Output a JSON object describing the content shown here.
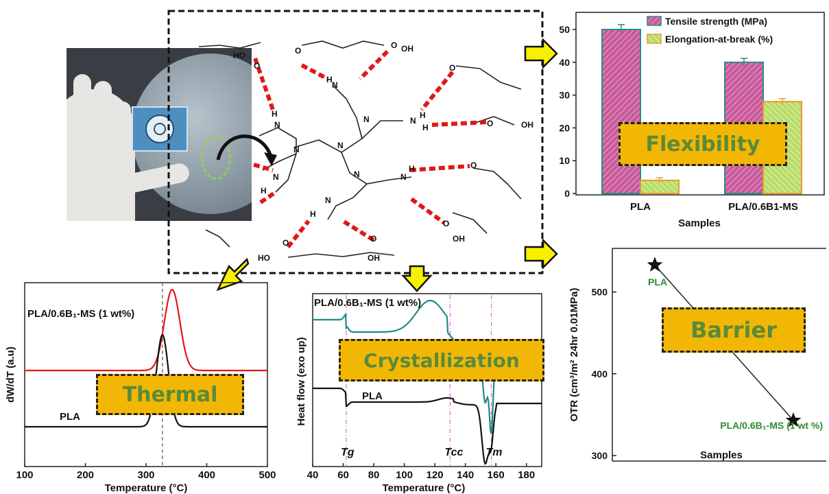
{
  "badges": {
    "flexibility": "Flexibility",
    "barrier": "Barrier",
    "thermal": "Thermal",
    "crystallization": "Crystallization"
  },
  "molecule": {
    "atoms": {
      "N": "N",
      "H": "H",
      "O": "O",
      "OH": "OH",
      "HO": "HO"
    }
  },
  "chart_data": [
    {
      "type": "bar",
      "categories": [
        "PLA",
        "PLA/0.6B1-MS"
      ],
      "series": [
        {
          "name": "Tensile strength (MPa)",
          "values": [
            50,
            40
          ],
          "errors": [
            1.5,
            1.2
          ],
          "color": "#c85a9a"
        },
        {
          "name": "Elongation-at-break (%)",
          "values": [
            4,
            28
          ],
          "errors": [
            0.8,
            0.9
          ],
          "color": "#b9dc6a"
        }
      ],
      "xlabel": "Samples",
      "ylabel": "",
      "ylim": [
        0,
        50
      ],
      "yticks": [
        "0",
        "10",
        "20",
        "30",
        "40",
        "50"
      ],
      "legend": "top-right"
    },
    {
      "type": "scatter",
      "categories": [
        "PLA",
        "PLA/0.6B₁-MS (1 wt %)"
      ],
      "values": [
        533,
        343
      ],
      "xlabel": "Samples",
      "ylabel": "OTR (cm³/m² 24hr 0.01MPa)",
      "ylim": [
        300,
        560
      ],
      "yticks": [
        "300",
        "400",
        "500"
      ],
      "marker": "star"
    },
    {
      "type": "line",
      "xlabel": "Temperature (°C)",
      "ylabel": "dW/dT (a.u)",
      "xlim": [
        100,
        500
      ],
      "xticks": [
        "100",
        "200",
        "300",
        "400",
        "500"
      ],
      "vline": 327,
      "series": [
        {
          "name": "PLA/0.6B₁-MS (1 wt%)",
          "color": "#e01818",
          "peak_x": 343
        },
        {
          "name": "PLA",
          "color": "#111111",
          "peak_x": 327
        }
      ]
    },
    {
      "type": "line",
      "xlabel": "Temperature (°C)",
      "ylabel": "Heat flow (exo up)",
      "xlim": [
        40,
        190
      ],
      "xticks": [
        "40",
        "60",
        "80",
        "100",
        "120",
        "140",
        "160",
        "180"
      ],
      "markers": [
        {
          "label": "Tg",
          "x": 62
        },
        {
          "label": "Tcc",
          "x": 130
        },
        {
          "label": "Tm",
          "x": 157
        }
      ],
      "series": [
        {
          "name": "PLA/0.6B₁-MS (1 wt%)",
          "color": "#1e8a86"
        },
        {
          "name": "PLA",
          "color": "#111111"
        }
      ]
    }
  ]
}
